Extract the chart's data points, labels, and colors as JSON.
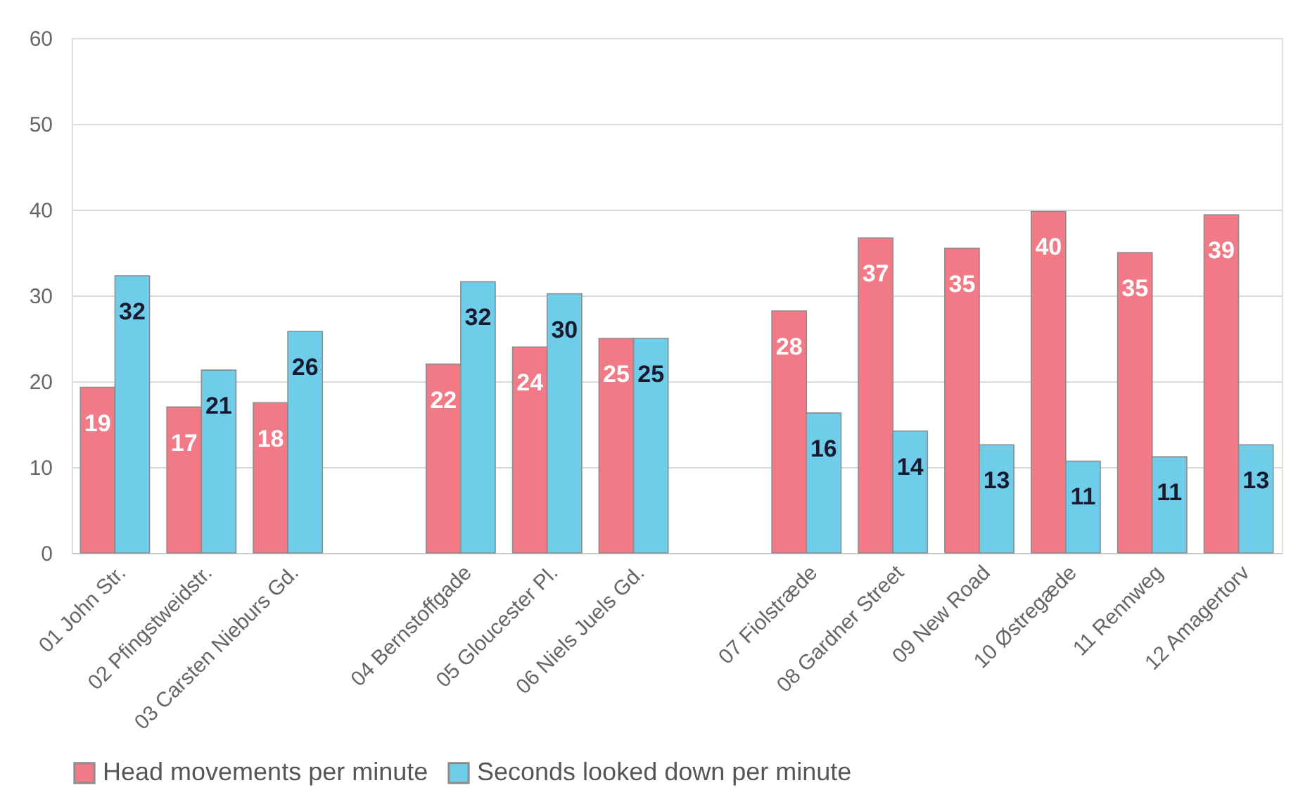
{
  "chart_data": {
    "type": "bar",
    "categories": [
      "01 John Str.",
      "02 Pfingstweidstr.",
      "03 Carsten Nieburs Gd.",
      null,
      "04 Bernstoffgade",
      "05 Gloucester Pl.",
      "06 Niels Juels Gd.",
      null,
      "07 Fiolstræde",
      "08 Gardner Street",
      "09 New Road",
      "10 Østregæde",
      "11 Rennweg",
      "12 Amagertorv"
    ],
    "series": [
      {
        "name": "Head movements per minute",
        "color": "#f27a86",
        "values": [
          19.3,
          17,
          17.5,
          null,
          22,
          24,
          25,
          null,
          28.2,
          36.7,
          35.5,
          39.8,
          35,
          39.4
        ],
        "value_labels": [
          "19",
          "17",
          "18",
          null,
          "22",
          "24",
          "25",
          null,
          "28",
          "37",
          "35",
          "40",
          "35",
          "39"
        ]
      },
      {
        "name": "Seconds looked down per minute",
        "color": "#70cdea",
        "values": [
          32.3,
          21.3,
          25.8,
          null,
          31.6,
          30.2,
          25,
          null,
          16.3,
          14.2,
          12.6,
          10.7,
          11.2,
          12.6
        ],
        "value_labels": [
          "32",
          "21",
          "26",
          null,
          "32",
          "30",
          "25",
          null,
          "16",
          "14",
          "13",
          "11",
          "11",
          "13"
        ]
      }
    ],
    "ylim": [
      0,
      60
    ],
    "yticks": [
      0,
      10,
      20,
      30,
      40,
      50,
      60
    ],
    "grid": "y",
    "legend": "bottom"
  }
}
